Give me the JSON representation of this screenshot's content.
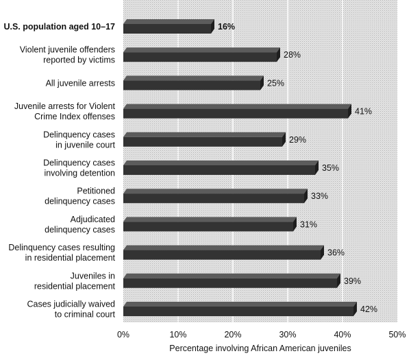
{
  "chart_data": {
    "type": "bar",
    "orientation": "horizontal",
    "categories": [
      [
        "U.S. population aged 10–17"
      ],
      [
        "Violent juvenile offenders",
        "reported by victims"
      ],
      [
        "All juvenile arrests"
      ],
      [
        "Juvenile arrests for Violent",
        "Crime Index offenses"
      ],
      [
        "Delinquency cases",
        "in juvenile court"
      ],
      [
        "Delinquency cases",
        "involving detention"
      ],
      [
        "Petitioned",
        "delinquency cases"
      ],
      [
        "Adjudicated",
        "delinquency cases"
      ],
      [
        "Delinquency cases resulting",
        "in residential placement"
      ],
      [
        "Juveniles in",
        "residential placement"
      ],
      [
        "Cases judicially waived",
        "to criminal court"
      ]
    ],
    "values": [
      16,
      28,
      25,
      41,
      29,
      35,
      33,
      31,
      36,
      39,
      42
    ],
    "value_labels": [
      "16%",
      "28%",
      "25%",
      "41%",
      "29%",
      "35%",
      "33%",
      "31%",
      "36%",
      "39%",
      "42%"
    ],
    "emphasized_index": 0,
    "xlim": [
      0,
      50
    ],
    "xticks": [
      "0%",
      "10%",
      "20%",
      "30%",
      "40%",
      "50%"
    ],
    "xlabel": "Percentage involving African American juveniles",
    "ylabel": "",
    "title": "",
    "grid": true,
    "colors": {
      "plot_background": "#dcdcdc",
      "gridline": "#f4f4f4",
      "bar_top": "#5c5c5c",
      "bar_front": "#333333",
      "bar_side": "#1e1e1e"
    }
  }
}
